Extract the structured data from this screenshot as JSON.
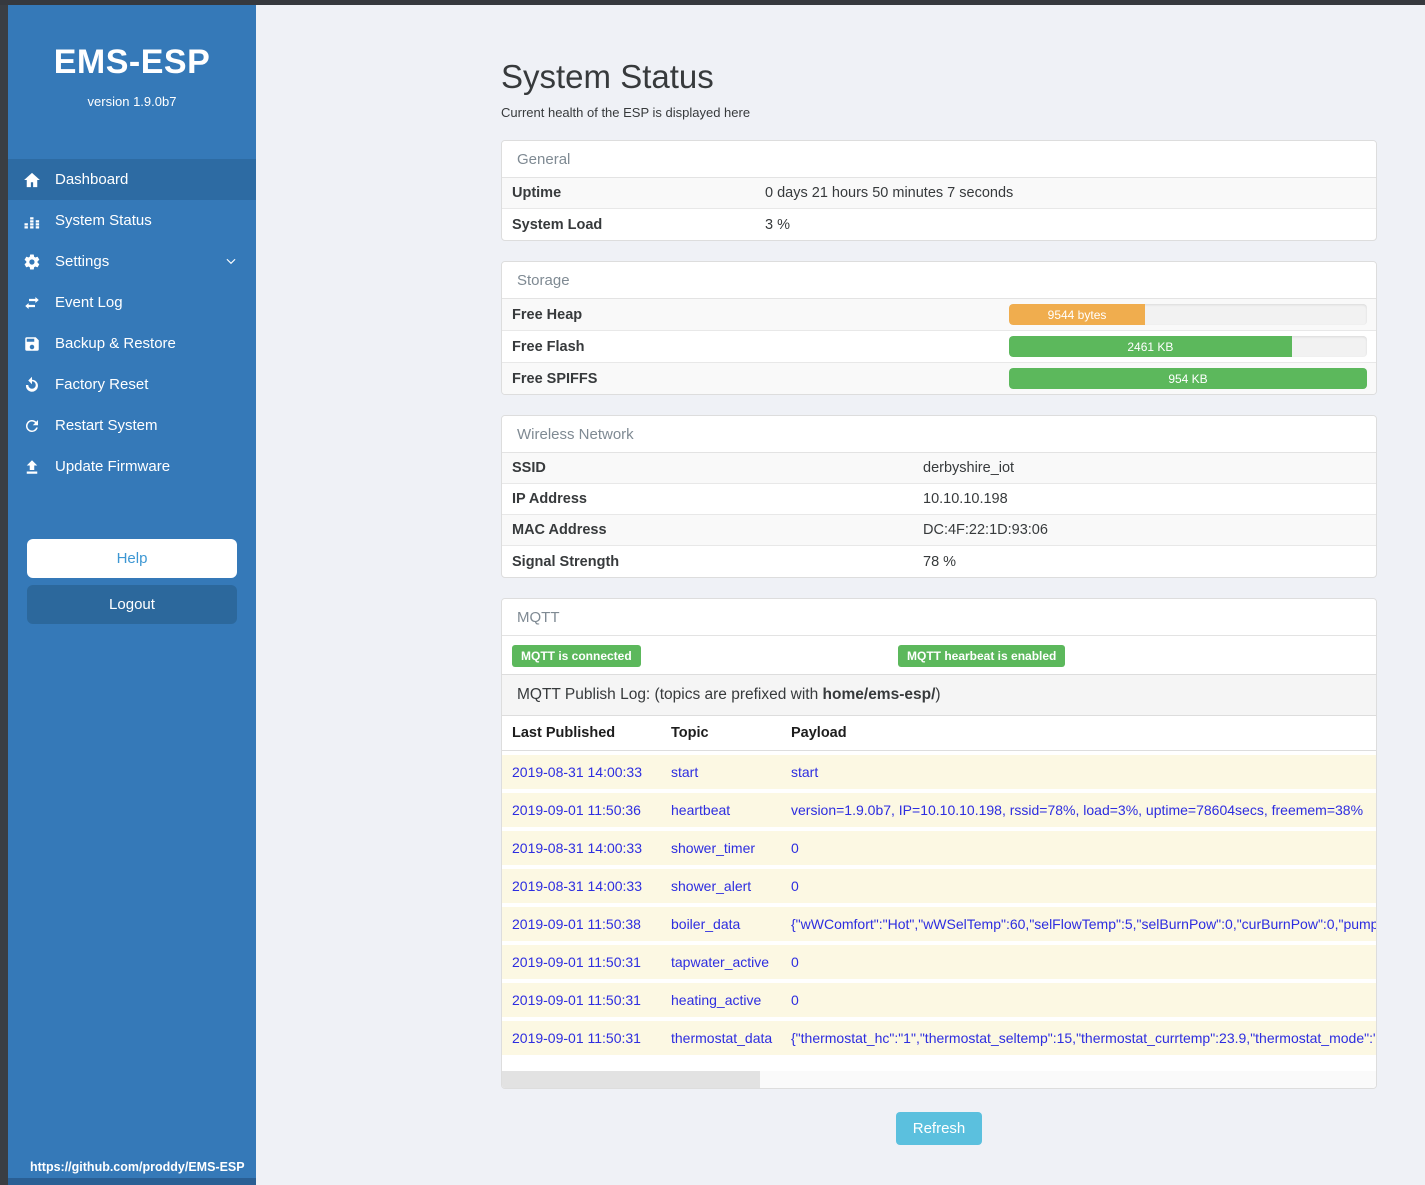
{
  "app": {
    "title": "EMS-ESP",
    "version": "version 1.9.0b7",
    "footer_url": "https://github.com/proddy/EMS-ESP"
  },
  "sidebar": {
    "items": [
      {
        "icon": "home-icon",
        "label": "Dashboard",
        "active": true
      },
      {
        "icon": "system-status-icon",
        "label": "System Status",
        "active": false
      },
      {
        "icon": "gear-icon",
        "label": "Settings",
        "active": false,
        "has_chevron": true
      },
      {
        "icon": "exchange-icon",
        "label": "Event Log",
        "active": false
      },
      {
        "icon": "save-icon",
        "label": "Backup & Restore",
        "active": false
      },
      {
        "icon": "rotate-left-icon",
        "label": "Factory Reset",
        "active": false
      },
      {
        "icon": "refresh-icon",
        "label": "Restart System",
        "active": false
      },
      {
        "icon": "upload-icon",
        "label": "Update Firmware",
        "active": false
      }
    ],
    "help_label": "Help",
    "logout_label": "Logout"
  },
  "page": {
    "title": "System Status",
    "subtitle": "Current health of the ESP is displayed here",
    "refresh_label": "Refresh"
  },
  "colors": {
    "sidebar_blue": "#3579b8",
    "active_blue": "#2d6ba3",
    "success_green": "#5cb85c",
    "warning_orange": "#f0ad4e",
    "info_cyan": "#5bc0de",
    "log_text_blue": "#2d2de0",
    "log_row_cream": "#fcf8e3"
  },
  "panels": {
    "general": {
      "title": "General",
      "rows": [
        {
          "label": "Uptime",
          "value": "0 days 21 hours 50 minutes 7 seconds"
        },
        {
          "label": "System Load",
          "value": "3 %"
        }
      ]
    },
    "storage": {
      "title": "Storage",
      "rows": [
        {
          "label": "Free Heap",
          "bar_label": "9544 bytes",
          "percent": 38,
          "color": "#f0ad4e"
        },
        {
          "label": "Free Flash",
          "bar_label": "2461 KB",
          "percent": 79,
          "color": "#5cb85c"
        },
        {
          "label": "Free SPIFFS",
          "bar_label": "954 KB",
          "percent": 100,
          "color": "#5cb85c"
        }
      ]
    },
    "wireless": {
      "title": "Wireless Network",
      "rows": [
        {
          "label": "SSID",
          "value": "derbyshire_iot"
        },
        {
          "label": "IP Address",
          "value": "10.10.10.198"
        },
        {
          "label": "MAC Address",
          "value": "DC:4F:22:1D:93:06"
        },
        {
          "label": "Signal Strength",
          "value": "78 %"
        }
      ]
    },
    "mqtt": {
      "title": "MQTT",
      "badges": [
        "MQTT is connected",
        "MQTT hearbeat is enabled"
      ],
      "publish_log": {
        "prefix": "MQTT Publish Log: (topics are prefixed with ",
        "bold": "home/ems-esp/",
        "suffix": ")"
      },
      "table": {
        "headers": [
          "Last Published",
          "Topic",
          "Payload"
        ],
        "rows": [
          {
            "date": "2019-08-31 14:00:33",
            "topic": "start",
            "payload": "start"
          },
          {
            "date": "2019-09-01 11:50:36",
            "topic": "heartbeat",
            "payload": "version=1.9.0b7, IP=10.10.10.198, rssid=78%, load=3%, uptime=78604secs, freemem=38%"
          },
          {
            "date": "2019-08-31 14:00:33",
            "topic": "shower_timer",
            "payload": "0"
          },
          {
            "date": "2019-08-31 14:00:33",
            "topic": "shower_alert",
            "payload": "0"
          },
          {
            "date": "2019-09-01 11:50:38",
            "topic": "boiler_data",
            "payload": "{\"wWComfort\":\"Hot\",\"wWSelTemp\":60,\"selFlowTemp\":5,\"selBurnPow\":0,\"curBurnPow\":0,\"pump"
          },
          {
            "date": "2019-09-01 11:50:31",
            "topic": "tapwater_active",
            "payload": "0"
          },
          {
            "date": "2019-09-01 11:50:31",
            "topic": "heating_active",
            "payload": "0"
          },
          {
            "date": "2019-09-01 11:50:31",
            "topic": "thermostat_data",
            "payload": "{\"thermostat_hc\":\"1\",\"thermostat_seltemp\":15,\"thermostat_currtemp\":23.9,\"thermostat_mode\":\""
          }
        ]
      }
    }
  }
}
